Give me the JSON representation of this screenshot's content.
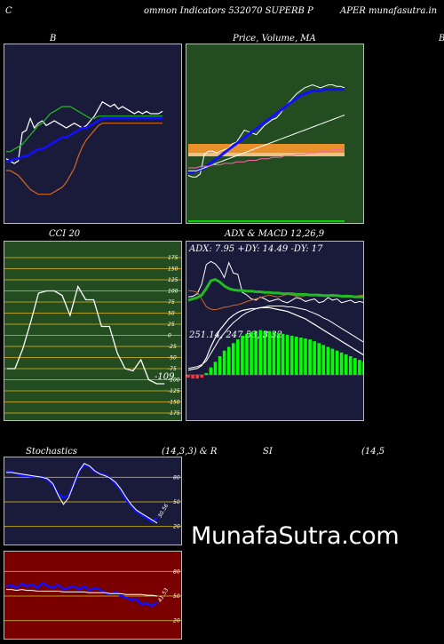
{
  "header": {
    "left_char": "C",
    "title_a": "ommon  Indicators 532070  SUPERB P",
    "title_b": "APER munafasutra.in"
  },
  "watermark": "MunafaSutra.com",
  "panel_titles": {
    "b": "B",
    "price": "Price,  Volume, MA",
    "price_overlay": "Volume",
    "right_edge": "B",
    "cci": "CCI 20",
    "adx": "ADX  & MACD 12,26,9",
    "stoch": "Stochastics",
    "stoch_params": "(14,3,3) & R",
    "rsi": "SI",
    "rsi_params": "(14,5"
  },
  "colors": {
    "navy": "#1a1a3a",
    "green_bg": "#234d20",
    "olive_grid": "#b59b1c",
    "red_bg": "#7a0000",
    "blue": "#1010ff",
    "white": "#ffffff",
    "orange": "#d2691e",
    "green_line": "#22bb22",
    "bright_green": "#00ff00"
  },
  "chart_data": [
    {
      "type": "line",
      "panel": "bollinger",
      "title": "B",
      "x": [
        0,
        1,
        2,
        3,
        4,
        5,
        6,
        7,
        8,
        9,
        10,
        11,
        12,
        13,
        14,
        15,
        16,
        17,
        18,
        19,
        20,
        21,
        22,
        23,
        24,
        25,
        26,
        27,
        28,
        29,
        30,
        31,
        32,
        33,
        34,
        35,
        36,
        37,
        38,
        39
      ],
      "series": [
        {
          "name": "price",
          "color": "#ffffff",
          "values": [
            23,
            22,
            21,
            22,
            34,
            35,
            40,
            36,
            38,
            39,
            37,
            38,
            39,
            38,
            37,
            36,
            37,
            38,
            37,
            36,
            37,
            39,
            41,
            44,
            47,
            46,
            45,
            46,
            44,
            45,
            44,
            43,
            42,
            43,
            42,
            43,
            42,
            42,
            42,
            43
          ]
        },
        {
          "name": "upper",
          "color": "#22bb22",
          "values": [
            26,
            26,
            27,
            28,
            29,
            31,
            33,
            35,
            37,
            38,
            40,
            42,
            43,
            44,
            45,
            45,
            45,
            44,
            43,
            42,
            41,
            40,
            40,
            41,
            41,
            41,
            41,
            41,
            41,
            41,
            41,
            41,
            41,
            41,
            41,
            41,
            41,
            41,
            41,
            41
          ]
        },
        {
          "name": "middle",
          "color": "#1010ff",
          "values": [
            22,
            22,
            23,
            23,
            24,
            24,
            25,
            26,
            27,
            27,
            28,
            29,
            30,
            31,
            32,
            32,
            33,
            34,
            35,
            36,
            36,
            37,
            38,
            39,
            40,
            40,
            40,
            40,
            40,
            40,
            40,
            40,
            40,
            40,
            40,
            40,
            40,
            40,
            40,
            40
          ]
        },
        {
          "name": "lower",
          "color": "#d2691e",
          "values": [
            18,
            18,
            17,
            16,
            14,
            12,
            10,
            9,
            8,
            8,
            8,
            8,
            9,
            10,
            11,
            13,
            16,
            19,
            24,
            28,
            31,
            33,
            35,
            37,
            38,
            38,
            38,
            38,
            38,
            38,
            38,
            38,
            38,
            38,
            38,
            38,
            38,
            38,
            38,
            38
          ]
        }
      ]
    },
    {
      "type": "line",
      "panel": "price",
      "title": "Price,  Volume, MA",
      "x": [
        0,
        1,
        2,
        3,
        4,
        5,
        6,
        7,
        8,
        9,
        10,
        11,
        12,
        13,
        14,
        15,
        16,
        17,
        18,
        19,
        20,
        21,
        22,
        23,
        24,
        25,
        26,
        27,
        28,
        29,
        30,
        31,
        32,
        33,
        34,
        35,
        36,
        37,
        38,
        39
      ],
      "series": [
        {
          "name": "close",
          "color": "#ffffff",
          "values": [
            25,
            24,
            24,
            26,
            39,
            41,
            41,
            40,
            41,
            42,
            43,
            46,
            47,
            51,
            55,
            54,
            53,
            52,
            55,
            58,
            60,
            62,
            63,
            66,
            70,
            73,
            76,
            79,
            81,
            83,
            84,
            85,
            84,
            83,
            84,
            85,
            85,
            84,
            84,
            83
          ]
        },
        {
          "name": "ma-short",
          "color": "#1010ff",
          "values": [
            27,
            27,
            28,
            29,
            30,
            32,
            34,
            36,
            38,
            40,
            42,
            44,
            46,
            48,
            50,
            52,
            54,
            56,
            58,
            60,
            62,
            64,
            66,
            68,
            70,
            72,
            74,
            76,
            78,
            79,
            80,
            81,
            81,
            81,
            82,
            82,
            82,
            82,
            82,
            82
          ]
        },
        {
          "name": "ma-mid",
          "color": "#ffffff",
          "values": [
            28,
            28,
            28,
            29,
            30,
            31,
            32,
            33,
            34,
            35,
            36,
            37,
            38,
            39,
            40,
            41,
            42,
            43,
            44,
            45,
            46,
            47,
            48,
            49,
            50,
            51,
            52,
            53,
            54,
            55,
            56,
            57,
            58,
            59,
            60,
            61,
            62,
            63,
            64,
            65
          ]
        },
        {
          "name": "ma-long",
          "color": "#ff66aa",
          "values": [
            30,
            30,
            30,
            31,
            31,
            31,
            32,
            32,
            32,
            33,
            33,
            33,
            34,
            34,
            34,
            35,
            35,
            35,
            36,
            36,
            36,
            37,
            37,
            37,
            38,
            38,
            38,
            39,
            39,
            39,
            40,
            40,
            40,
            41,
            41,
            41,
            42,
            42,
            42,
            43
          ]
        }
      ]
    },
    {
      "type": "line",
      "panel": "cci",
      "title": "CCI 20",
      "yticks": [
        175,
        150,
        125,
        100,
        75,
        50,
        25,
        0,
        -25,
        -50,
        -75,
        -100,
        -125,
        -150,
        -175
      ],
      "ylim": [
        -185,
        195
      ],
      "last_label": "-109",
      "x": [
        0,
        1,
        2,
        3,
        4,
        5,
        6,
        7,
        8,
        9,
        10,
        11,
        12,
        13,
        14,
        15,
        16,
        17,
        18,
        19,
        20,
        21,
        22,
        23,
        24,
        25,
        26,
        27,
        28,
        29
      ],
      "series": [
        {
          "name": "cci",
          "color": "#ffffff",
          "values": [
            -75,
            -75,
            -30,
            30,
            95,
            100,
            100,
            90,
            45,
            110,
            80,
            80,
            20,
            20,
            -40,
            -75,
            -80,
            -55,
            -100,
            -109,
            -109,
            null,
            null,
            null,
            null,
            null,
            null,
            null,
            null,
            null
          ]
        }
      ]
    },
    {
      "type": "line",
      "panel": "adx",
      "title": "ADX  & MACD 12,26,9",
      "label": "ADX: 7.95 +DY: 14.49 -DY: 17",
      "x": [
        0,
        1,
        2,
        3,
        4,
        5,
        6,
        7,
        8,
        9,
        10,
        11,
        12,
        13,
        14,
        15,
        16,
        17,
        18,
        19,
        20,
        21,
        22,
        23,
        24,
        25,
        26,
        27,
        28,
        29,
        30,
        31,
        32,
        33,
        34,
        35,
        36,
        37,
        38,
        39
      ],
      "series": [
        {
          "name": "adx",
          "color": "#22bb22",
          "values": [
            40,
            42,
            44,
            48,
            58,
            70,
            72,
            68,
            62,
            58,
            56,
            55,
            55,
            54,
            54,
            53,
            53,
            52,
            52,
            51,
            51,
            50,
            50,
            50,
            49,
            49,
            49,
            48,
            48,
            48,
            47,
            47,
            47,
            47,
            46,
            46,
            46,
            45,
            45,
            45
          ]
        },
        {
          "name": "+DY",
          "color": "#ffffff",
          "values": [
            45,
            46,
            50,
            65,
            95,
            100,
            96,
            88,
            75,
            98,
            82,
            80,
            52,
            48,
            42,
            40,
            45,
            42,
            38,
            40,
            42,
            38,
            36,
            40,
            44,
            42,
            38,
            40,
            42,
            36,
            38,
            44,
            40,
            42,
            36,
            38,
            40,
            36,
            38,
            36
          ]
        },
        {
          "name": "-DY",
          "color": "#d2691e",
          "values": [
            55,
            54,
            52,
            42,
            30,
            26,
            25,
            27,
            29,
            30,
            32,
            33,
            35,
            38,
            40,
            42,
            44,
            46,
            48,
            46,
            45,
            47,
            49,
            48,
            46,
            45,
            47,
            49,
            48,
            46,
            47,
            48,
            49,
            47,
            46,
            48,
            47,
            46,
            47,
            48
          ]
        }
      ]
    },
    {
      "type": "bar",
      "panel": "macd",
      "label": "251.14,  247.53,  3.32",
      "x": [
        0,
        1,
        2,
        3,
        4,
        5,
        6,
        7,
        8,
        9,
        10,
        11,
        12,
        13,
        14,
        15,
        16,
        17,
        18,
        19,
        20,
        21,
        22,
        23,
        24,
        25,
        26,
        27,
        28,
        29,
        30,
        31,
        32,
        33,
        34,
        35,
        36,
        37,
        38,
        39
      ],
      "series": [
        {
          "name": "histogram",
          "color": "#00ff00",
          "values": [
            -3,
            -4,
            -4,
            -3,
            2,
            8,
            14,
            20,
            26,
            30,
            34,
            38,
            42,
            44,
            46,
            47,
            48,
            47,
            47,
            46,
            45,
            44,
            43,
            42,
            41,
            40,
            39,
            38,
            36,
            34,
            32,
            30,
            28,
            26,
            24,
            22,
            20,
            18,
            16,
            14
          ]
        },
        {
          "name": "macd",
          "color": "#ffffff",
          "values": [
            5,
            6,
            7,
            10,
            18,
            30,
            40,
            48,
            54,
            60,
            64,
            67,
            69,
            70,
            71,
            71,
            72,
            72,
            72,
            71,
            70,
            69,
            68,
            66,
            64,
            62,
            60,
            57,
            54,
            51,
            48,
            45,
            42,
            39,
            36,
            33,
            30,
            27,
            24,
            21
          ]
        },
        {
          "name": "signal",
          "color": "#ffffff",
          "values": [
            4,
            5,
            6,
            8,
            12,
            20,
            28,
            36,
            42,
            48,
            53,
            57,
            61,
            64,
            66,
            68,
            69,
            70,
            71,
            71,
            71,
            71,
            70,
            70,
            69,
            68,
            67,
            65,
            63,
            61,
            58,
            56,
            53,
            50,
            47,
            44,
            41,
            38,
            35,
            32
          ]
        }
      ]
    },
    {
      "type": "line",
      "panel": "stochastics",
      "title": "Stochastics",
      "yticks": [
        80,
        50,
        20
      ],
      "ylim": [
        0,
        100
      ],
      "last_label": "30.56",
      "x": [
        0,
        1,
        2,
        3,
        4,
        5,
        6,
        7,
        8,
        9,
        10,
        11,
        12,
        13,
        14,
        15,
        16,
        17,
        18,
        19,
        20,
        21,
        22,
        23,
        24,
        25,
        26,
        27,
        28,
        29
      ],
      "series": [
        {
          "name": "%K",
          "color": "#1010ff",
          "values": [
            88,
            87,
            84,
            82,
            82,
            81,
            81,
            80,
            77,
            70,
            60,
            55,
            58,
            72,
            88,
            96,
            93,
            87,
            85,
            83,
            79,
            72,
            64,
            53,
            45,
            38,
            34,
            30,
            26,
            30
          ]
        },
        {
          "name": "%D",
          "color": "#ffffff",
          "values": [
            86,
            86,
            85,
            84,
            83,
            82,
            81,
            80,
            78,
            72,
            58,
            47,
            55,
            72,
            88,
            97,
            94,
            88,
            84,
            82,
            79,
            74,
            66,
            56,
            47,
            40,
            36,
            32,
            28,
            24
          ]
        }
      ]
    },
    {
      "type": "line",
      "panel": "rsi",
      "title": "SI",
      "yticks": [
        80,
        50,
        20
      ],
      "ylim": [
        0,
        100
      ],
      "last_label": "41.53",
      "x": [
        0,
        1,
        2,
        3,
        4,
        5,
        6,
        7,
        8,
        9,
        10,
        11,
        12,
        13,
        14,
        15,
        16,
        17,
        18,
        19,
        20,
        21,
        22,
        23,
        24,
        25,
        26,
        27,
        28,
        29
      ],
      "series": [
        {
          "name": "rsi",
          "color": "#1010ff",
          "values": [
            62,
            63,
            60,
            65,
            62,
            64,
            60,
            66,
            62,
            60,
            64,
            58,
            60,
            62,
            58,
            62,
            57,
            60,
            58,
            54,
            52,
            55,
            50,
            48,
            45,
            46,
            40,
            41,
            38,
            42
          ]
        },
        {
          "name": "rsi-smooth",
          "color": "#ffffff",
          "values": [
            58,
            58,
            57,
            58,
            57,
            57,
            56,
            56,
            56,
            56,
            56,
            55,
            55,
            55,
            55,
            55,
            54,
            54,
            54,
            54,
            53,
            53,
            53,
            52,
            52,
            52,
            52,
            51,
            51,
            50
          ]
        }
      ]
    }
  ]
}
